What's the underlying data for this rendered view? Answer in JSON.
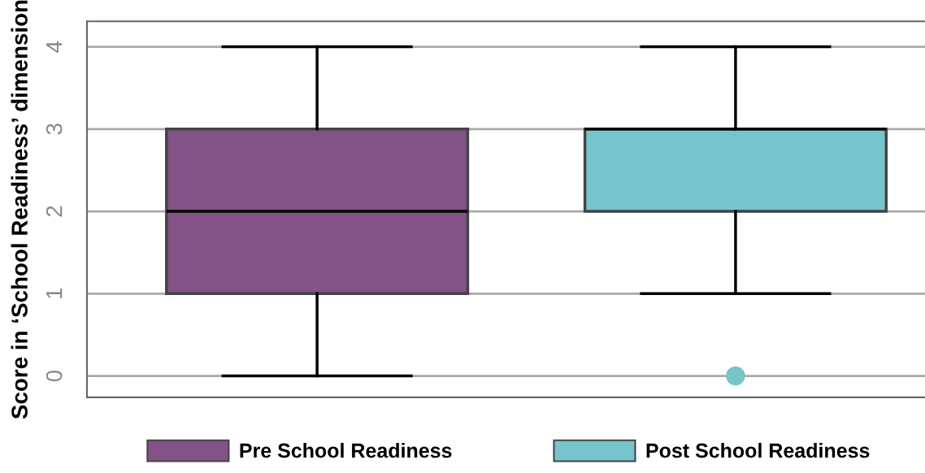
{
  "chart_data": {
    "type": "box",
    "ylabel": "Score in ‘School Readiness’ dimension",
    "categories": [
      null,
      null
    ],
    "series": [
      {
        "name": "Pre School Readiness",
        "color": "#835286",
        "boxes": [
          {
            "low": 0,
            "q1": 1,
            "median": 2,
            "q3": 3,
            "high": 4
          },
          null
        ]
      },
      {
        "name": "Post School Readiness",
        "color": "#77c5cc",
        "boxes": [
          null,
          {
            "low": 1,
            "q1": 2,
            "median": 3,
            "q3": 3,
            "high": 4,
            "outliers": [
              0
            ]
          }
        ]
      }
    ],
    "ylim": [
      -0.26,
      4.31
    ],
    "yticks": [
      0,
      1,
      2,
      3,
      4
    ],
    "grid": "y",
    "legend": "bottom"
  }
}
